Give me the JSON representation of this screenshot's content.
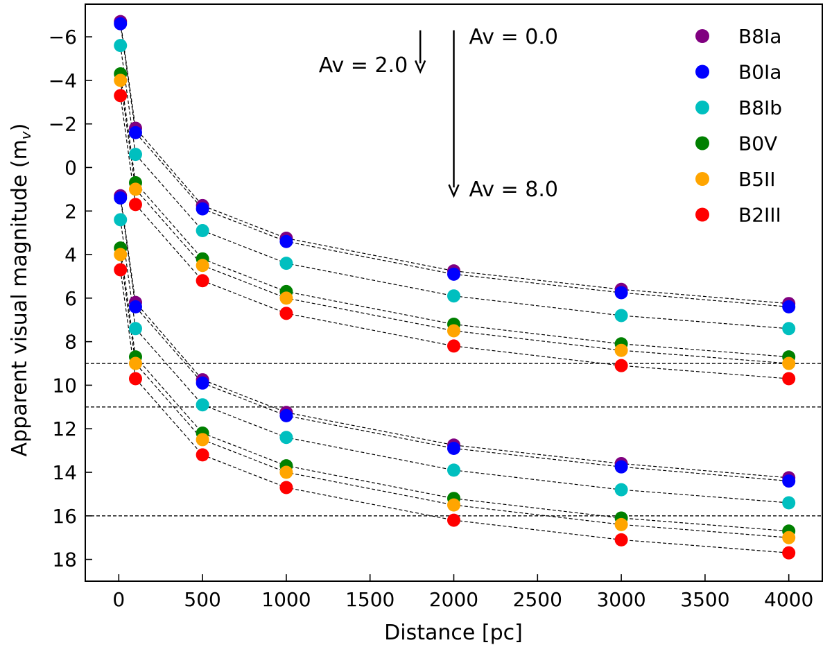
{
  "chart_data": {
    "type": "scatter",
    "xlabel": "Distance [pc]",
    "ylabel": "Apparent visual magnitude (m",
    "ylabel_sub": "v",
    "ylabel_close": ")",
    "xlim": [
      -200,
      4200
    ],
    "ylim": [
      19,
      -7.5
    ],
    "y_inverted": true,
    "x_ticks": [
      0,
      500,
      1000,
      1500,
      2000,
      2500,
      3000,
      3500,
      4000
    ],
    "x_tick_labels": [
      "0",
      "500",
      "1000",
      "1500",
      "2000",
      "2500",
      "3000",
      "3500",
      "4000"
    ],
    "y_ticks": [
      -6,
      -4,
      -2,
      0,
      2,
      4,
      6,
      8,
      10,
      12,
      14,
      16,
      18
    ],
    "y_tick_labels": [
      "−6",
      "−4",
      "−2",
      "0",
      "2",
      "4",
      "6",
      "8",
      "10",
      "12",
      "14",
      "16",
      "18"
    ],
    "grid": false,
    "legend_position": "top-right",
    "x": [
      10,
      100,
      500,
      1000,
      2000,
      3000,
      4000
    ],
    "series": [
      {
        "name": "B8Ia",
        "color": "#800080",
        "av0": [
          -6.7,
          -1.8,
          1.75,
          3.25,
          4.75,
          5.6,
          6.25
        ],
        "av8": [
          1.3,
          6.2,
          9.75,
          11.25,
          12.75,
          13.6,
          14.25
        ]
      },
      {
        "name": "B0Ia",
        "color": "#0000ff",
        "av0": [
          -6.6,
          -1.6,
          1.9,
          3.4,
          4.9,
          5.75,
          6.4
        ],
        "av8": [
          1.4,
          6.4,
          9.9,
          11.4,
          12.9,
          13.75,
          14.4
        ]
      },
      {
        "name": "B8Ib",
        "color": "#00bfbf",
        "av0": [
          -5.6,
          -0.6,
          2.9,
          4.4,
          5.9,
          6.8,
          7.4
        ],
        "av8": [
          2.4,
          7.4,
          10.9,
          12.4,
          13.9,
          14.8,
          15.4
        ]
      },
      {
        "name": "B0V",
        "color": "#008000",
        "av0": [
          -4.3,
          0.7,
          4.2,
          5.7,
          7.2,
          8.1,
          8.7
        ],
        "av8": [
          3.7,
          8.7,
          12.2,
          13.7,
          15.2,
          16.1,
          16.7
        ]
      },
      {
        "name": "B5II",
        "color": "#ffa500",
        "av0": [
          -4.0,
          1.0,
          4.5,
          6.0,
          7.5,
          8.4,
          9.0
        ],
        "av8": [
          4.0,
          9.0,
          12.5,
          14.0,
          15.5,
          16.4,
          17.0
        ]
      },
      {
        "name": "B2III",
        "color": "#ff0000",
        "av0": [
          -3.3,
          1.7,
          5.2,
          6.7,
          8.2,
          9.1,
          9.7
        ],
        "av8": [
          4.7,
          9.7,
          13.2,
          14.7,
          16.2,
          17.1,
          17.7
        ]
      }
    ],
    "horizontal_lines": [
      9,
      11,
      16
    ],
    "annotations": [
      {
        "text": "Av = 0.0",
        "x": 2000,
        "y": -6.0
      },
      {
        "text": "Av = 8.0",
        "x": 2000,
        "y": 1.0
      },
      {
        "text": "Av = 2.0",
        "x": 1800,
        "y": -4.7
      }
    ],
    "arrows": [
      {
        "x": 2000,
        "from": -6.3,
        "to": 1.3
      },
      {
        "x": 1800,
        "from": -6.3,
        "to": -4.4
      }
    ]
  }
}
